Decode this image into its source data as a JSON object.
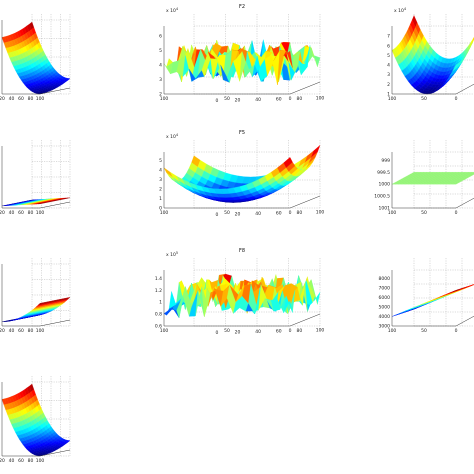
{
  "chart_data": [
    {
      "type": "surface",
      "title": "",
      "surface": "bowl",
      "exponent": "",
      "zticks": [],
      "xticks": [
        "20",
        "40",
        "60",
        "80",
        "100"
      ],
      "yticks": []
    },
    {
      "type": "surface",
      "title": "F2",
      "surface": "noise",
      "exponent": "4",
      "zticks": [
        "2",
        "3",
        "4",
        "5",
        "6"
      ],
      "xticks": [
        "100",
        "50",
        "0"
      ],
      "yticks": [
        "0",
        "20",
        "40",
        "60",
        "80",
        "100"
      ]
    },
    {
      "type": "surface",
      "title": "",
      "surface": "valley",
      "exponent": "4",
      "zticks": [
        "1",
        "2",
        "3",
        "4",
        "5",
        "6",
        "7"
      ],
      "xticks": [
        "100",
        "50",
        "0"
      ],
      "yticks": []
    },
    {
      "type": "surface",
      "title": "",
      "surface": "flat_blue",
      "exponent": "",
      "zticks": [],
      "xticks": [
        "20",
        "40",
        "60",
        "80",
        "100"
      ],
      "yticks": []
    },
    {
      "type": "surface",
      "title": "F5",
      "surface": "bowl_center",
      "exponent": "4",
      "zticks": [
        "0",
        "1",
        "2",
        "3",
        "4",
        "5"
      ],
      "xticks": [
        "100",
        "50",
        "0"
      ],
      "yticks": [
        "0",
        "20",
        "40",
        "60",
        "80",
        "100"
      ]
    },
    {
      "type": "surface",
      "title": "",
      "surface": "plane",
      "exponent": "",
      "zticks": [
        "1001",
        "1000.5",
        "1000",
        "999.5",
        "999"
      ],
      "xticks": [
        "100",
        "50",
        "0"
      ],
      "yticks": []
    },
    {
      "type": "surface",
      "title": "",
      "surface": "sheet",
      "exponent": "",
      "zticks": [],
      "xticks": [
        "20",
        "40",
        "60",
        "80",
        "100"
      ],
      "yticks": []
    },
    {
      "type": "surface",
      "title": "F8",
      "surface": "noise2",
      "exponent": "5",
      "zticks": [
        "0.6",
        "0.8",
        "1",
        "1.2",
        "1.4"
      ],
      "xticks": [
        "100",
        "50",
        "0"
      ],
      "yticks": [
        "0",
        "20",
        "40",
        "60",
        "80",
        "100"
      ]
    },
    {
      "type": "surface",
      "title": "",
      "surface": "ramp",
      "exponent": "",
      "zticks": [
        "3000",
        "4000",
        "5000",
        "6000",
        "7000",
        "8000"
      ],
      "xticks": [
        "100",
        "50",
        "0"
      ],
      "yticks": []
    },
    {
      "type": "surface",
      "title": "",
      "surface": "bowl",
      "exponent": "",
      "zticks": [],
      "xticks": [
        "20",
        "40",
        "60",
        "80",
        "100"
      ],
      "yticks": []
    }
  ]
}
